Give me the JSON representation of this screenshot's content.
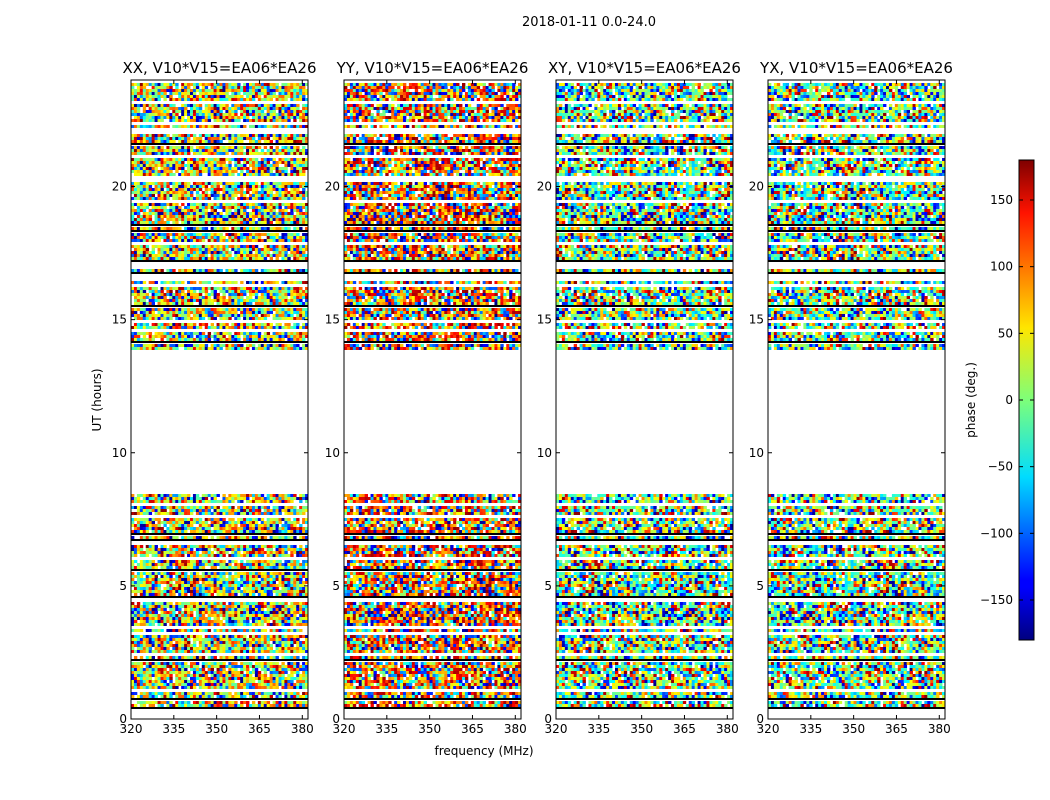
{
  "chart_data": {
    "type": "heatmap",
    "suptitle": "2018-01-11 0.0-24.0",
    "xlabel": "frequency (MHz)",
    "ylabel": "UT (hours)",
    "xlim": [
      320,
      382
    ],
    "ylim": [
      0,
      24
    ],
    "xticks": [
      320,
      335,
      350,
      365,
      380
    ],
    "yticks": [
      0,
      5,
      10,
      15,
      20
    ],
    "panels": [
      {
        "title": "XX, V10*V15=EA06*EA26",
        "pol": "XX"
      },
      {
        "title": "YY, V10*V15=EA06*EA26",
        "pol": "YY"
      },
      {
        "title": "XY, V10*V15=EA06*EA26",
        "pol": "XY"
      },
      {
        "title": "YX, V10*V15=EA06*EA26",
        "pol": "YX"
      }
    ],
    "colorbar": {
      "label": "phase (deg.)",
      "range": [
        -180,
        180
      ],
      "ticks": [
        -150,
        -100,
        -50,
        0,
        50,
        100,
        150
      ],
      "colormap": "jet"
    },
    "data_ut_bands": [
      [
        0.0,
        8.5
      ],
      [
        13.9,
        23.9
      ]
    ],
    "flagged_gap_ut": [
      8.5,
      13.9
    ]
  }
}
